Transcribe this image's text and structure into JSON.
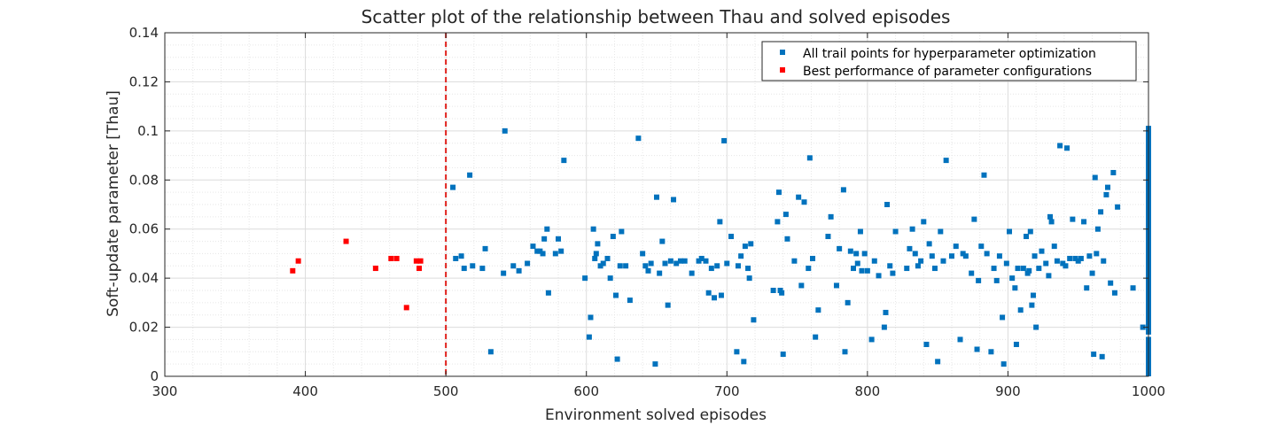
{
  "chart_data": {
    "type": "scatter",
    "title": "Scatter plot of the relationship between Thau and solved episodes",
    "xlabel": "Environment solved episodes",
    "ylabel": "Soft-update parameter [Thau]",
    "xlim": [
      300,
      1000
    ],
    "ylim": [
      0,
      0.14
    ],
    "xticks": [
      300,
      400,
      500,
      600,
      700,
      800,
      900,
      1000
    ],
    "yticks": [
      0,
      0.02,
      0.04,
      0.06,
      0.08,
      0.1,
      0.12,
      0.14
    ],
    "xtick_labels": [
      "300",
      "400",
      "500",
      "600",
      "700",
      "800",
      "900",
      "1000"
    ],
    "ytick_labels": [
      "0",
      "0.02",
      "0.04",
      "0.06",
      "0.08",
      "0.1",
      "0.12",
      "0.14"
    ],
    "grid": true,
    "minor_grid": true,
    "legend_position": "top-right",
    "threshold_line": {
      "x": 500,
      "style": "dashed",
      "color": "#e0201b"
    },
    "series": [
      {
        "name": "All trail points for hyperparameter optimization",
        "color": "#0072bd",
        "marker": "square",
        "points": [
          [
            505,
            0.077
          ],
          [
            507,
            0.048
          ],
          [
            511,
            0.049
          ],
          [
            513,
            0.044
          ],
          [
            517,
            0.082
          ],
          [
            519,
            0.045
          ],
          [
            526,
            0.044
          ],
          [
            528,
            0.052
          ],
          [
            532,
            0.01
          ],
          [
            541,
            0.042
          ],
          [
            542,
            0.1
          ],
          [
            548,
            0.045
          ],
          [
            552,
            0.043
          ],
          [
            558,
            0.046
          ],
          [
            562,
            0.053
          ],
          [
            565,
            0.051
          ],
          [
            567,
            0.051
          ],
          [
            569,
            0.05
          ],
          [
            570,
            0.056
          ],
          [
            572,
            0.06
          ],
          [
            573,
            0.034
          ],
          [
            578,
            0.05
          ],
          [
            580,
            0.056
          ],
          [
            582,
            0.051
          ],
          [
            584,
            0.088
          ],
          [
            599,
            0.04
          ],
          [
            602,
            0.016
          ],
          [
            603,
            0.024
          ],
          [
            605,
            0.06
          ],
          [
            606,
            0.048
          ],
          [
            607,
            0.05
          ],
          [
            608,
            0.054
          ],
          [
            610,
            0.045
          ],
          [
            612,
            0.046
          ],
          [
            615,
            0.048
          ],
          [
            617,
            0.04
          ],
          [
            619,
            0.057
          ],
          [
            621,
            0.033
          ],
          [
            622,
            0.007
          ],
          [
            624,
            0.045
          ],
          [
            625,
            0.059
          ],
          [
            628,
            0.045
          ],
          [
            631,
            0.031
          ],
          [
            637,
            0.097
          ],
          [
            640,
            0.05
          ],
          [
            642,
            0.045
          ],
          [
            644,
            0.043
          ],
          [
            646,
            0.046
          ],
          [
            649,
            0.005
          ],
          [
            650,
            0.073
          ],
          [
            652,
            0.042
          ],
          [
            654,
            0.055
          ],
          [
            656,
            0.046
          ],
          [
            658,
            0.029
          ],
          [
            660,
            0.047
          ],
          [
            662,
            0.072
          ],
          [
            664,
            0.046
          ],
          [
            667,
            0.047
          ],
          [
            670,
            0.047
          ],
          [
            675,
            0.042
          ],
          [
            680,
            0.047
          ],
          [
            682,
            0.048
          ],
          [
            685,
            0.047
          ],
          [
            687,
            0.034
          ],
          [
            689,
            0.044
          ],
          [
            691,
            0.032
          ],
          [
            693,
            0.045
          ],
          [
            695,
            0.063
          ],
          [
            696,
            0.033
          ],
          [
            698,
            0.096
          ],
          [
            700,
            0.046
          ],
          [
            703,
            0.057
          ],
          [
            707,
            0.01
          ],
          [
            708,
            0.045
          ],
          [
            710,
            0.049
          ],
          [
            712,
            0.006
          ],
          [
            713,
            0.053
          ],
          [
            715,
            0.044
          ],
          [
            716,
            0.04
          ],
          [
            717,
            0.054
          ],
          [
            719,
            0.023
          ],
          [
            733,
            0.035
          ],
          [
            736,
            0.063
          ],
          [
            737,
            0.075
          ],
          [
            738,
            0.035
          ],
          [
            739,
            0.034
          ],
          [
            740,
            0.009
          ],
          [
            742,
            0.066
          ],
          [
            743,
            0.056
          ],
          [
            748,
            0.047
          ],
          [
            751,
            0.073
          ],
          [
            753,
            0.037
          ],
          [
            755,
            0.071
          ],
          [
            758,
            0.044
          ],
          [
            759,
            0.089
          ],
          [
            761,
            0.048
          ],
          [
            763,
            0.016
          ],
          [
            765,
            0.027
          ],
          [
            772,
            0.057
          ],
          [
            774,
            0.065
          ],
          [
            778,
            0.037
          ],
          [
            780,
            0.052
          ],
          [
            783,
            0.076
          ],
          [
            784,
            0.01
          ],
          [
            786,
            0.03
          ],
          [
            788,
            0.051
          ],
          [
            790,
            0.044
          ],
          [
            792,
            0.05
          ],
          [
            793,
            0.046
          ],
          [
            795,
            0.059
          ],
          [
            796,
            0.043
          ],
          [
            798,
            0.05
          ],
          [
            800,
            0.043
          ],
          [
            803,
            0.015
          ],
          [
            805,
            0.047
          ],
          [
            808,
            0.041
          ],
          [
            812,
            0.02
          ],
          [
            813,
            0.026
          ],
          [
            814,
            0.07
          ],
          [
            816,
            0.045
          ],
          [
            818,
            0.042
          ],
          [
            820,
            0.059
          ],
          [
            828,
            0.044
          ],
          [
            830,
            0.052
          ],
          [
            832,
            0.06
          ],
          [
            834,
            0.05
          ],
          [
            836,
            0.045
          ],
          [
            838,
            0.047
          ],
          [
            840,
            0.063
          ],
          [
            842,
            0.013
          ],
          [
            844,
            0.054
          ],
          [
            846,
            0.049
          ],
          [
            848,
            0.044
          ],
          [
            850,
            0.006
          ],
          [
            852,
            0.059
          ],
          [
            854,
            0.047
          ],
          [
            856,
            0.088
          ],
          [
            860,
            0.049
          ],
          [
            863,
            0.053
          ],
          [
            866,
            0.015
          ],
          [
            868,
            0.05
          ],
          [
            870,
            0.049
          ],
          [
            874,
            0.042
          ],
          [
            876,
            0.064
          ],
          [
            878,
            0.011
          ],
          [
            879,
            0.039
          ],
          [
            881,
            0.053
          ],
          [
            883,
            0.082
          ],
          [
            885,
            0.05
          ],
          [
            888,
            0.01
          ],
          [
            890,
            0.044
          ],
          [
            892,
            0.039
          ],
          [
            894,
            0.049
          ],
          [
            896,
            0.024
          ],
          [
            897,
            0.005
          ],
          [
            899,
            0.046
          ],
          [
            901,
            0.059
          ],
          [
            903,
            0.04
          ],
          [
            905,
            0.036
          ],
          [
            906,
            0.013
          ],
          [
            907,
            0.044
          ],
          [
            909,
            0.027
          ],
          [
            911,
            0.044
          ],
          [
            913,
            0.057
          ],
          [
            914,
            0.042
          ],
          [
            915,
            0.043
          ],
          [
            916,
            0.059
          ],
          [
            917,
            0.029
          ],
          [
            918,
            0.033
          ],
          [
            919,
            0.049
          ],
          [
            920,
            0.02
          ],
          [
            922,
            0.044
          ],
          [
            924,
            0.051
          ],
          [
            927,
            0.046
          ],
          [
            929,
            0.041
          ],
          [
            930,
            0.065
          ],
          [
            931,
            0.063
          ],
          [
            933,
            0.053
          ],
          [
            935,
            0.047
          ],
          [
            937,
            0.094
          ],
          [
            939,
            0.046
          ],
          [
            941,
            0.045
          ],
          [
            942,
            0.093
          ],
          [
            944,
            0.048
          ],
          [
            946,
            0.064
          ],
          [
            948,
            0.048
          ],
          [
            950,
            0.047
          ],
          [
            952,
            0.048
          ],
          [
            954,
            0.063
          ],
          [
            956,
            0.036
          ],
          [
            958,
            0.049
          ],
          [
            960,
            0.042
          ],
          [
            961,
            0.009
          ],
          [
            962,
            0.081
          ],
          [
            963,
            0.05
          ],
          [
            964,
            0.06
          ],
          [
            966,
            0.067
          ],
          [
            967,
            0.008
          ],
          [
            968,
            0.047
          ],
          [
            970,
            0.074
          ],
          [
            971,
            0.077
          ],
          [
            973,
            0.038
          ],
          [
            975,
            0.083
          ],
          [
            976,
            0.034
          ],
          [
            978,
            0.069
          ],
          [
            989,
            0.036
          ],
          [
            996,
            0.02
          ]
        ],
        "stack_at_x": 1000,
        "stack_y_ranges": [
          [
            0,
            0.015
          ],
          [
            0.017,
            0.101
          ]
        ]
      },
      {
        "name": "Best performance of parameter configurations",
        "color": "#ff0000",
        "marker": "square",
        "points": [
          [
            391,
            0.043
          ],
          [
            395,
            0.047
          ],
          [
            429,
            0.055
          ],
          [
            450,
            0.044
          ],
          [
            461,
            0.048
          ],
          [
            465,
            0.048
          ],
          [
            472,
            0.028
          ],
          [
            479,
            0.047
          ],
          [
            481,
            0.044
          ],
          [
            482,
            0.047
          ]
        ]
      }
    ]
  }
}
